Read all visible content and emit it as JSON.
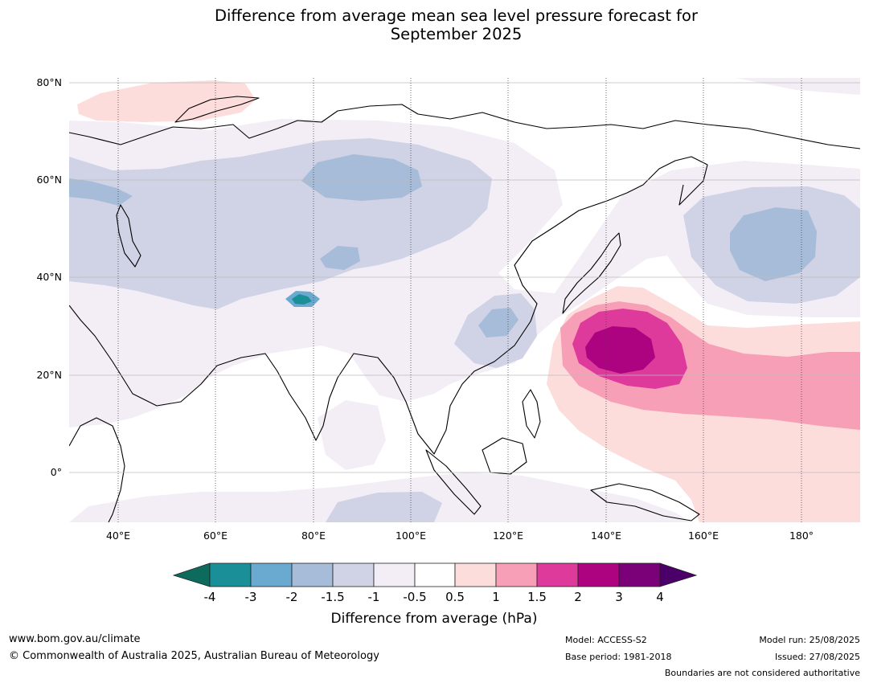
{
  "title": "Difference from average mean sea level pressure forecast for\nSeptember 2025",
  "map": {
    "lat_ticks": [
      "80°N",
      "60°N",
      "40°N",
      "20°N",
      "0°"
    ],
    "lon_ticks": [
      "40°E",
      "60°E",
      "80°E",
      "100°E",
      "120°E",
      "140°E",
      "160°E",
      "180°"
    ],
    "extent": {
      "lon_min": 30,
      "lon_max": 191,
      "lat_min": -10,
      "lat_max": 81
    }
  },
  "colorbar": {
    "title": "Difference from average (hPa)",
    "tick_labels": [
      "-4",
      "-3",
      "-2",
      "-1.5",
      "-1",
      "-0.5",
      "0.5",
      "1",
      "1.5",
      "2",
      "3",
      "4"
    ],
    "colors": {
      "below_-4": "#0d6b5e",
      "-4_-3": "#1a8f98",
      "-3_-2": "#6aa9d0",
      "-2_-1.5": "#a6bcd8",
      "-1.5_-1": "#d0d2e6",
      "-1_-0.5": "#f3eef5",
      "-0.5_0.5": "#ffffff",
      "0.5_1": "#fddcdc",
      "1_1.5": "#f89fb8",
      "1.5_2": "#de3a9c",
      "2_3": "#ad0380",
      "3_4": "#7b0178",
      "above_4": "#4a0068"
    }
  },
  "footer": {
    "website": "www.bom.gov.au/climate",
    "copyright": "© Commonwealth of Australia 2025, Australian Bureau of Meteorology",
    "model": "Model: ACCESS-S2",
    "base_period": "Base period: 1981-2018",
    "model_run": "Model run: 25/08/2025",
    "issued": "Issued: 27/08/2025",
    "disclaimer": "Boundaries are not considered authoritative"
  }
}
